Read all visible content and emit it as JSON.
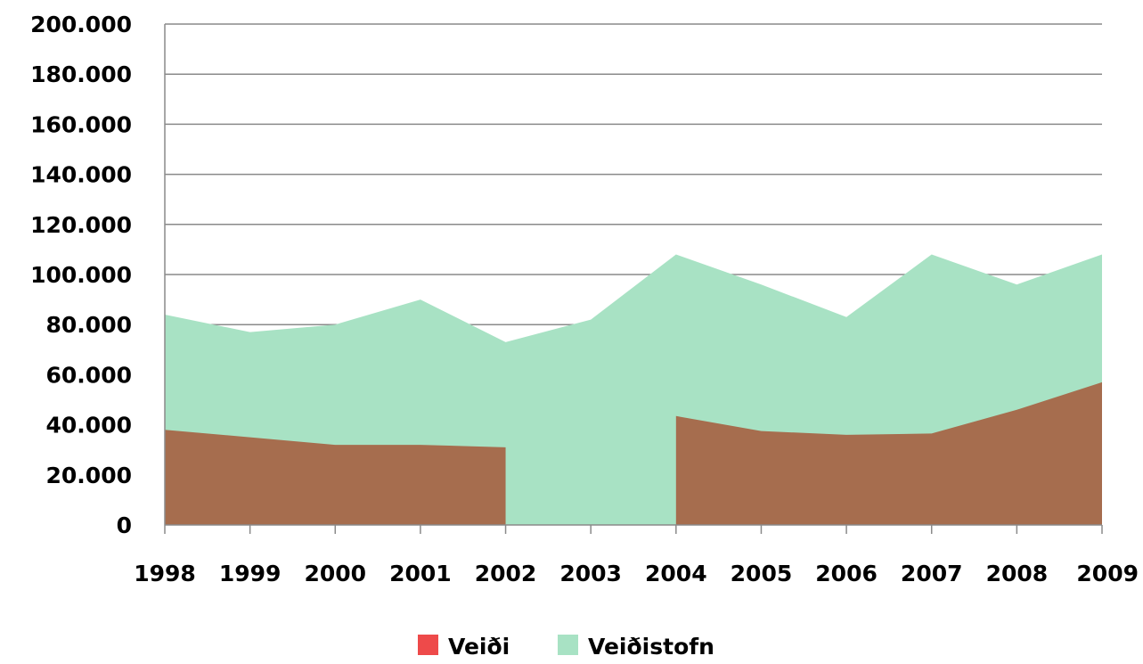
{
  "chart_data": {
    "type": "area",
    "title": "",
    "xlabel": "",
    "ylabel": "",
    "categories": [
      "1998",
      "1999",
      "2000",
      "2001",
      "2002",
      "2003",
      "2004",
      "2005",
      "2006",
      "2007",
      "2008",
      "2009"
    ],
    "series": [
      {
        "name": "Veiðistofn",
        "color": "#a8e2c4",
        "values": [
          84000,
          77000,
          80000,
          90000,
          73000,
          82000,
          108000,
          96000,
          83000,
          108000,
          96000,
          108000
        ]
      },
      {
        "name": "Veiði",
        "color": "#a66d4e",
        "legend_color": "#ee4a4a",
        "values": [
          38000,
          35000,
          32000,
          32000,
          31000,
          null,
          43500,
          37500,
          36000,
          36500,
          46000,
          57000
        ]
      }
    ],
    "legend_order": [
      "Veiði",
      "Veiðistofn"
    ],
    "ylim": [
      0,
      200000
    ],
    "yticks": [
      0,
      20000,
      40000,
      60000,
      80000,
      100000,
      120000,
      140000,
      160000,
      180000,
      200000
    ],
    "ytick_labels": [
      "0",
      "20.000",
      "40.000",
      "60.000",
      "80.000",
      "100.000",
      "120.000",
      "140.000",
      "160.000",
      "180.000",
      "200.000"
    ],
    "grid": true,
    "legend_position": "bottom-center"
  }
}
